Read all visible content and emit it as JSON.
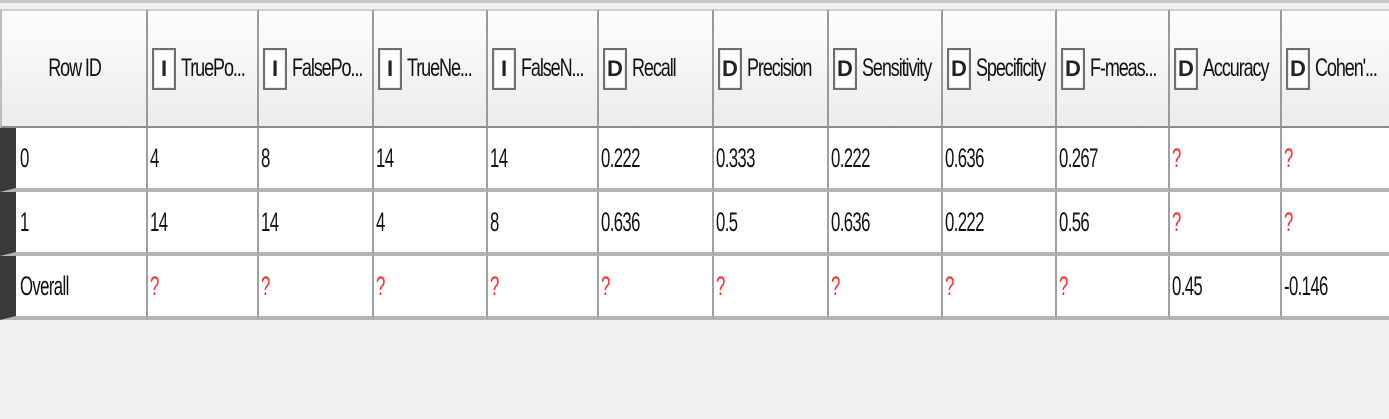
{
  "table": {
    "columns": [
      {
        "label": "Row ID",
        "type": ""
      },
      {
        "label": "TruePo...",
        "type": "I"
      },
      {
        "label": "FalsePo...",
        "type": "I"
      },
      {
        "label": "TrueNe...",
        "type": "I"
      },
      {
        "label": "FalseN...",
        "type": "I"
      },
      {
        "label": "Recall",
        "type": "D"
      },
      {
        "label": "Precision",
        "type": "D"
      },
      {
        "label": "Sensitivity",
        "type": "D"
      },
      {
        "label": "Specificity",
        "type": "D"
      },
      {
        "label": "F-meas...",
        "type": "D"
      },
      {
        "label": "Accuracy",
        "type": "D"
      },
      {
        "label": "Cohen'...",
        "type": "D"
      }
    ],
    "rows": [
      [
        "0",
        "4",
        "8",
        "14",
        "14",
        "0.222",
        "0.333",
        "0.222",
        "0.636",
        "0.267",
        "?",
        "?"
      ],
      [
        "1",
        "14",
        "14",
        "4",
        "8",
        "0.636",
        "0.5",
        "0.636",
        "0.222",
        "0.56",
        "?",
        "?"
      ],
      [
        "Overall",
        "?",
        "?",
        "?",
        "?",
        "?",
        "?",
        "?",
        "?",
        "?",
        "0.45",
        "-0.146"
      ]
    ],
    "missing_symbol": "?",
    "missing_color": "#ff2a2a",
    "row_marker_color": "#3a3a3a"
  }
}
